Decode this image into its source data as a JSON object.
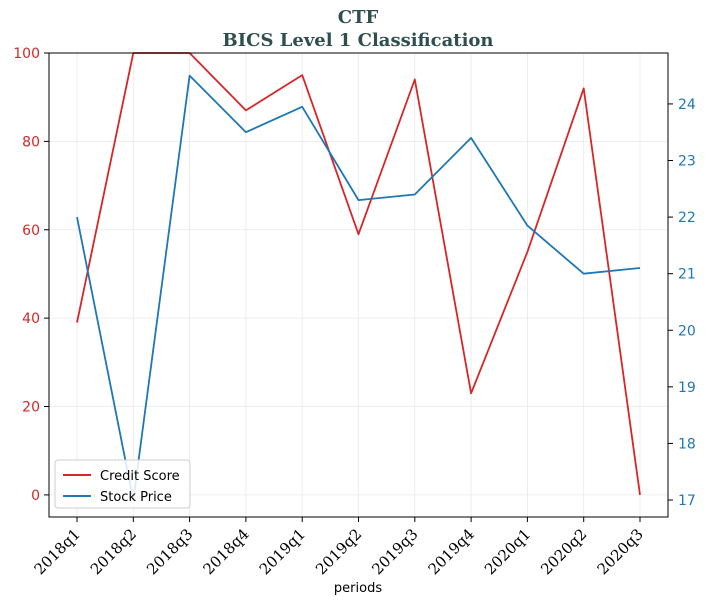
{
  "chart_data": {
    "type": "line",
    "title": "CTF",
    "subtitle": "BICS Level 1 Classification",
    "xlabel": "periods",
    "ylabel": "",
    "ylabel_right": "",
    "categories": [
      "2018q1",
      "2018q2",
      "2018q3",
      "2018q4",
      "2019q1",
      "2019q2",
      "2019q3",
      "2019q4",
      "2020q1",
      "2020q2",
      "2020q3"
    ],
    "series": [
      {
        "name": "Credit Score",
        "axis": "left",
        "color": "#d62728",
        "values": [
          39,
          100,
          100,
          87,
          95,
          59,
          94,
          23,
          55,
          92,
          0
        ]
      },
      {
        "name": "Stock Price",
        "axis": "right",
        "color": "#1f77b4",
        "values": [
          22.0,
          17.0,
          24.5,
          23.5,
          23.95,
          22.3,
          22.4,
          23.4,
          21.85,
          21.0,
          21.1
        ]
      }
    ],
    "ylim": [
      -5,
      100
    ],
    "yticks": [
      0,
      20,
      40,
      60,
      80,
      100
    ],
    "ylim_right": [
      16.7,
      24.9
    ],
    "yticks_right": [
      17,
      18,
      19,
      20,
      21,
      22,
      23,
      24
    ],
    "grid": true,
    "legend_position": "lower-left",
    "colors": {
      "left_axis": "#d62728",
      "right_axis": "#1f77b4",
      "title": "#2f4f4f"
    }
  }
}
